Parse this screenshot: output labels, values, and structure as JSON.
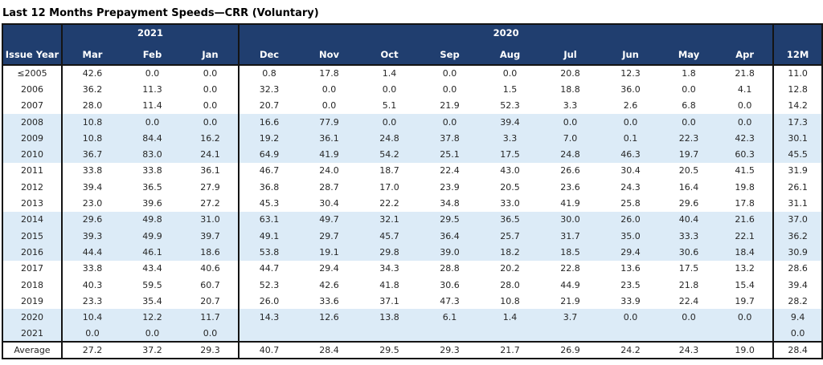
{
  "title": "Last 12 Months Prepayment Speeds—CRR (Voluntary)",
  "colors": {
    "header_bg": "#203e6f",
    "header_text": "#ffffff",
    "band_bg": "#dcebf7",
    "border": "#141414",
    "body_text": "#262626",
    "page_bg": "#ffffff"
  },
  "table": {
    "corner_label": "Issue Year",
    "year_groups": [
      {
        "label": "2021",
        "span": 3
      },
      {
        "label": "2020",
        "span": 9
      }
    ],
    "months": [
      "Mar",
      "Feb",
      "Jan",
      "Dec",
      "Nov",
      "Oct",
      "Sep",
      "Aug",
      "Jul",
      "Jun",
      "May",
      "Apr"
    ],
    "last_col": "12M",
    "rows": [
      {
        "label": "≤2005",
        "band": false,
        "values": [
          "42.6",
          "0.0",
          "0.0",
          "0.8",
          "17.8",
          "1.4",
          "0.0",
          "0.0",
          "20.8",
          "12.3",
          "1.8",
          "21.8",
          "11.0"
        ]
      },
      {
        "label": "2006",
        "band": false,
        "values": [
          "36.2",
          "11.3",
          "0.0",
          "32.3",
          "0.0",
          "0.0",
          "0.0",
          "1.5",
          "18.8",
          "36.0",
          "0.0",
          "4.1",
          "12.8"
        ]
      },
      {
        "label": "2007",
        "band": false,
        "values": [
          "28.0",
          "11.4",
          "0.0",
          "20.7",
          "0.0",
          "5.1",
          "21.9",
          "52.3",
          "3.3",
          "2.6",
          "6.8",
          "0.0",
          "14.2"
        ]
      },
      {
        "label": "2008",
        "band": true,
        "values": [
          "10.8",
          "0.0",
          "0.0",
          "16.6",
          "77.9",
          "0.0",
          "0.0",
          "39.4",
          "0.0",
          "0.0",
          "0.0",
          "0.0",
          "17.3"
        ]
      },
      {
        "label": "2009",
        "band": true,
        "values": [
          "10.8",
          "84.4",
          "16.2",
          "19.2",
          "36.1",
          "24.8",
          "37.8",
          "3.3",
          "7.0",
          "0.1",
          "22.3",
          "42.3",
          "30.1"
        ]
      },
      {
        "label": "2010",
        "band": true,
        "values": [
          "36.7",
          "83.0",
          "24.1",
          "64.9",
          "41.9",
          "54.2",
          "25.1",
          "17.5",
          "24.8",
          "46.3",
          "19.7",
          "60.3",
          "45.5"
        ]
      },
      {
        "label": "2011",
        "band": false,
        "values": [
          "33.8",
          "33.8",
          "36.1",
          "46.7",
          "24.0",
          "18.7",
          "22.4",
          "43.0",
          "26.6",
          "30.4",
          "20.5",
          "41.5",
          "31.9"
        ]
      },
      {
        "label": "2012",
        "band": false,
        "values": [
          "39.4",
          "36.5",
          "27.9",
          "36.8",
          "28.7",
          "17.0",
          "23.9",
          "20.5",
          "23.6",
          "24.3",
          "16.4",
          "19.8",
          "26.1"
        ]
      },
      {
        "label": "2013",
        "band": false,
        "values": [
          "23.0",
          "39.6",
          "27.2",
          "45.3",
          "30.4",
          "22.2",
          "34.8",
          "33.0",
          "41.9",
          "25.8",
          "29.6",
          "17.8",
          "31.1"
        ]
      },
      {
        "label": "2014",
        "band": true,
        "values": [
          "29.6",
          "49.8",
          "31.0",
          "63.1",
          "49.7",
          "32.1",
          "29.5",
          "36.5",
          "30.0",
          "26.0",
          "40.4",
          "21.6",
          "37.0"
        ]
      },
      {
        "label": "2015",
        "band": true,
        "values": [
          "39.3",
          "49.9",
          "39.7",
          "49.1",
          "29.7",
          "45.7",
          "36.4",
          "25.7",
          "31.7",
          "35.0",
          "33.3",
          "22.1",
          "36.2"
        ]
      },
      {
        "label": "2016",
        "band": true,
        "values": [
          "44.4",
          "46.1",
          "18.6",
          "53.8",
          "19.1",
          "29.8",
          "39.0",
          "18.2",
          "18.5",
          "29.4",
          "30.6",
          "18.4",
          "30.9"
        ]
      },
      {
        "label": "2017",
        "band": false,
        "values": [
          "33.8",
          "43.4",
          "40.6",
          "44.7",
          "29.4",
          "34.3",
          "28.8",
          "20.2",
          "22.8",
          "13.6",
          "17.5",
          "13.2",
          "28.6"
        ]
      },
      {
        "label": "2018",
        "band": false,
        "values": [
          "40.3",
          "59.5",
          "60.7",
          "52.3",
          "42.6",
          "41.8",
          "30.6",
          "28.0",
          "44.9",
          "23.5",
          "21.8",
          "15.4",
          "39.4"
        ]
      },
      {
        "label": "2019",
        "band": false,
        "values": [
          "23.3",
          "35.4",
          "20.7",
          "26.0",
          "33.6",
          "37.1",
          "47.3",
          "10.8",
          "21.9",
          "33.9",
          "22.4",
          "19.7",
          "28.2"
        ]
      },
      {
        "label": "2020",
        "band": true,
        "values": [
          "10.4",
          "12.2",
          "11.7",
          "14.3",
          "12.6",
          "13.8",
          "6.1",
          "1.4",
          "3.7",
          "0.0",
          "0.0",
          "0.0",
          "9.4"
        ]
      },
      {
        "label": "2021",
        "band": true,
        "values": [
          "0.0",
          "0.0",
          "0.0",
          "",
          "",
          "",
          "",
          "",
          "",
          "",
          "",
          "",
          "0.0"
        ]
      }
    ],
    "average": {
      "label": "Average",
      "values": [
        "27.2",
        "37.2",
        "29.3",
        "40.7",
        "28.4",
        "29.5",
        "29.3",
        "21.7",
        "26.9",
        "24.2",
        "24.3",
        "19.0",
        "28.4"
      ]
    }
  }
}
